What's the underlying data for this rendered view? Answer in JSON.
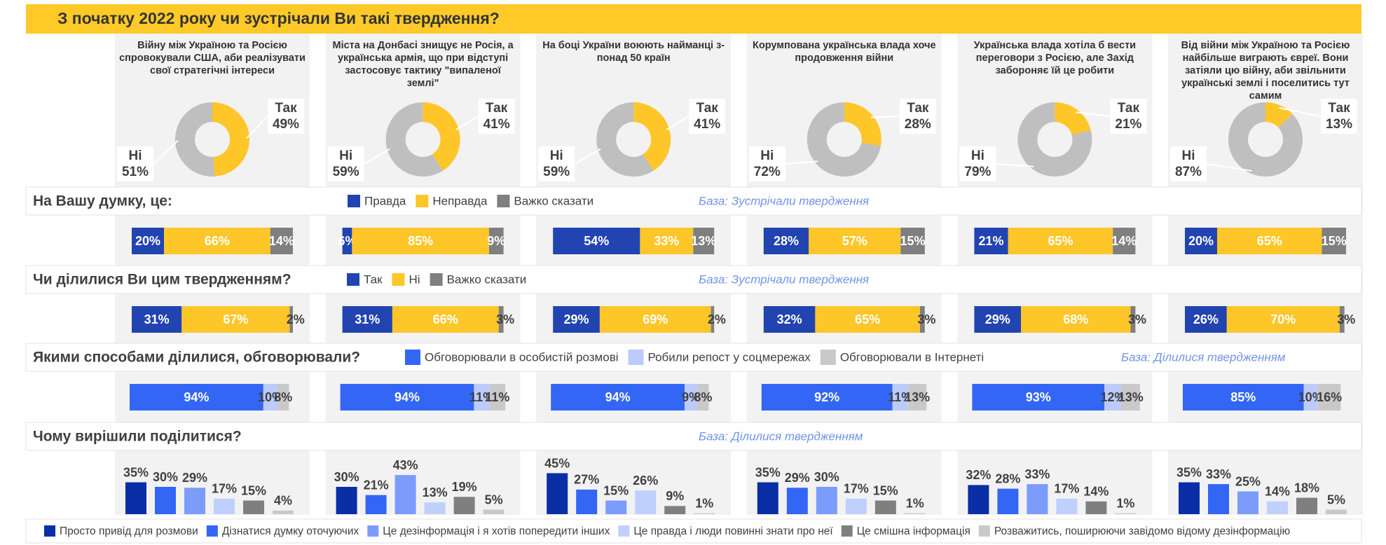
{
  "title": "З початку 2022 року чи зустрічали Ви такі твердження?",
  "chart_data": [
    {
      "type": "donut",
      "categories": [
        "Війну між Україною та Росією спровокували США, аби реалізувати свої стратегічні інтереси",
        "Міста на Донбасі знищує не Росія, а українська армія, що при відступі застосовує тактику \"випаленої землі\"",
        "На боці України воюють найманці з-понад 50 країн",
        "Корумпована українська влада хоче продовження війни",
        "Українська влада хотіла б вести переговори з Росією, але Захід забороняє їй це робити",
        "Від війни між Україною та Росією найбільше виграють євреї. Вони затіяли цю війну, аби звільнити українські землі і поселитись тут самим"
      ],
      "series": [
        {
          "name": "Так",
          "color": "#ffc629",
          "values": [
            49,
            41,
            41,
            28,
            21,
            13
          ],
          "value_labels": [
            "49%",
            "41%",
            "41%",
            "28%",
            "21%",
            "13%"
          ]
        },
        {
          "name": "Ні",
          "color": "#bfbfbf",
          "values": [
            51,
            59,
            59,
            72,
            79,
            87
          ],
          "value_labels": [
            "51%",
            "59%",
            "59%",
            "72%",
            "79%",
            "87%"
          ]
        }
      ]
    },
    {
      "type": "stacked-bar",
      "title": "На Вашу думку, це:",
      "note": "База: Зустрічали твердження",
      "series": [
        {
          "name": "Правда",
          "color": "#2144b0",
          "values": [
            20,
            6,
            54,
            28,
            21,
            20
          ],
          "value_labels": [
            "20%",
            "6%",
            "54%",
            "28%",
            "21%",
            "20%"
          ]
        },
        {
          "name": "Неправда",
          "color": "#ffc629",
          "values": [
            66,
            85,
            33,
            57,
            65,
            65
          ],
          "value_labels": [
            "66%",
            "85%",
            "33%",
            "57%",
            "65%",
            "65%"
          ]
        },
        {
          "name": "Важко сказати",
          "color": "#7f7f7f",
          "values": [
            14,
            9,
            13,
            15,
            14,
            15
          ],
          "value_labels": [
            "14%",
            "9%",
            "13%",
            "15%",
            "14%",
            "15%"
          ]
        }
      ]
    },
    {
      "type": "stacked-bar",
      "title": "Чи ділилися Ви цим твердженням?",
      "note": "База: Зустрічали твердження",
      "series": [
        {
          "name": "Так",
          "color": "#2144b0",
          "values": [
            31,
            31,
            29,
            32,
            29,
            26
          ],
          "value_labels": [
            "31%",
            "31%",
            "29%",
            "32%",
            "29%",
            "26%"
          ]
        },
        {
          "name": "Ні",
          "color": "#ffc629",
          "values": [
            67,
            66,
            69,
            65,
            68,
            70
          ],
          "value_labels": [
            "67%",
            "66%",
            "69%",
            "65%",
            "68%",
            "70%"
          ]
        },
        {
          "name": "Важко сказати",
          "color": "#7f7f7f",
          "values": [
            2,
            3,
            2,
            3,
            3,
            3
          ],
          "value_labels": [
            "2%",
            "3%",
            "2%",
            "3%",
            "3%",
            "3%"
          ]
        }
      ]
    },
    {
      "type": "sequence-bar",
      "title": "Якими способами ділилися, обговорювали?",
      "note": "База: Ділилися твердженням",
      "series": [
        {
          "name": "Обговорювали в особистій розмові",
          "color": "#3366f5",
          "values": [
            94,
            94,
            94,
            92,
            93,
            85
          ],
          "value_labels": [
            "94%",
            "94%",
            "94%",
            "92%",
            "93%",
            "85%"
          ]
        },
        {
          "name": "Робили репост у соцмережах",
          "color": "#bccbfa",
          "values": [
            10,
            11,
            9,
            11,
            12,
            10
          ],
          "value_labels": [
            "10%",
            "11%",
            "9%",
            "11%",
            "12%",
            "10%"
          ]
        },
        {
          "name": "Обговорювали в Інтернеті",
          "color": "#c9c9c9",
          "values": [
            8,
            11,
            8,
            13,
            13,
            16
          ],
          "value_labels": [
            "8%",
            "11%",
            "8%",
            "13%",
            "13%",
            "16%"
          ]
        }
      ]
    },
    {
      "type": "grouped-bar",
      "title": "Чому вирішили поділитися?",
      "note": "База: Ділилися твердженням",
      "series": [
        {
          "name": "Просто привід для розмови",
          "color": "#0a2ea6",
          "values": [
            35,
            30,
            45,
            35,
            32,
            35
          ],
          "value_labels": [
            "35%",
            "30%",
            "45%",
            "35%",
            "32%",
            "35%"
          ]
        },
        {
          "name": "Дізнатися думку оточуючих",
          "color": "#3366f5",
          "values": [
            30,
            21,
            27,
            29,
            28,
            33
          ],
          "value_labels": [
            "30%",
            "21%",
            "27%",
            "29%",
            "28%",
            "33%"
          ]
        },
        {
          "name": "Це дезінформація і я хотів попередити інших",
          "color": "#7c9cfb",
          "values": [
            29,
            43,
            15,
            30,
            33,
            25
          ],
          "value_labels": [
            "29%",
            "43%",
            "15%",
            "30%",
            "33%",
            "25%"
          ]
        },
        {
          "name": "Це правда і люди повинні знати про неї",
          "color": "#bfd0fc",
          "values": [
            17,
            13,
            26,
            17,
            17,
            14
          ],
          "value_labels": [
            "17%",
            "13%",
            "26%",
            "17%",
            "17%",
            "14%"
          ]
        },
        {
          "name": "Це смішна інформація",
          "color": "#7f7f7f",
          "values": [
            15,
            19,
            9,
            15,
            14,
            18
          ],
          "value_labels": [
            "15%",
            "19%",
            "9%",
            "15%",
            "14%",
            "18%"
          ]
        },
        {
          "name": "Розважитись, поширюючи завідомо відому дезінформацію",
          "color": "#c9c9c9",
          "values": [
            4,
            5,
            1,
            1,
            1,
            5
          ],
          "value_labels": [
            "4%",
            "5%",
            "1%",
            "1%",
            "1%",
            "5%"
          ]
        }
      ]
    }
  ]
}
